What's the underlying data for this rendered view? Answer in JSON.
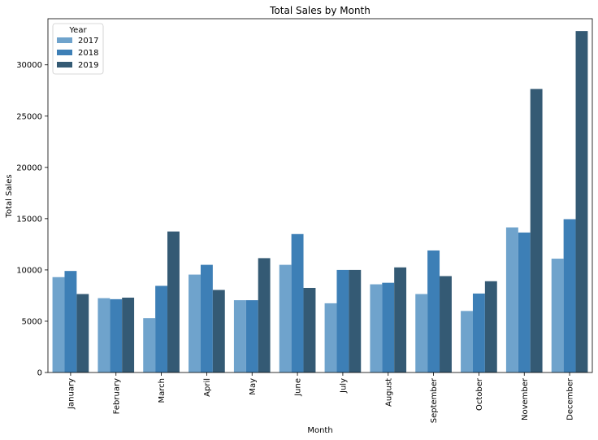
{
  "chart_data": {
    "type": "bar",
    "title": "Total Sales by Month",
    "xlabel": "Month",
    "ylabel": "Total Sales",
    "categories": [
      "January",
      "February",
      "March",
      "April",
      "May",
      "June",
      "July",
      "August",
      "September",
      "October",
      "November",
      "December"
    ],
    "series": [
      {
        "name": "2017",
        "color": "#6fa3cc",
        "values": [
          9300,
          7250,
          5300,
          9550,
          7050,
          10500,
          6750,
          8600,
          7650,
          6000,
          14150,
          11100
        ]
      },
      {
        "name": "2018",
        "color": "#3d7fb6",
        "values": [
          9900,
          7150,
          8450,
          10500,
          7050,
          13500,
          10000,
          8750,
          11900,
          7700,
          13650,
          14950
        ]
      },
      {
        "name": "2019",
        "color": "#345a74",
        "values": [
          7650,
          7300,
          13750,
          8050,
          11150,
          8250,
          10000,
          10250,
          9400,
          8900,
          27650,
          33300
        ]
      }
    ],
    "yticks": [
      0,
      5000,
      10000,
      15000,
      20000,
      25000,
      30000
    ],
    "ylim": [
      0,
      34500
    ],
    "legend": {
      "title": "Year",
      "placement": "top-left"
    },
    "grid": false
  }
}
